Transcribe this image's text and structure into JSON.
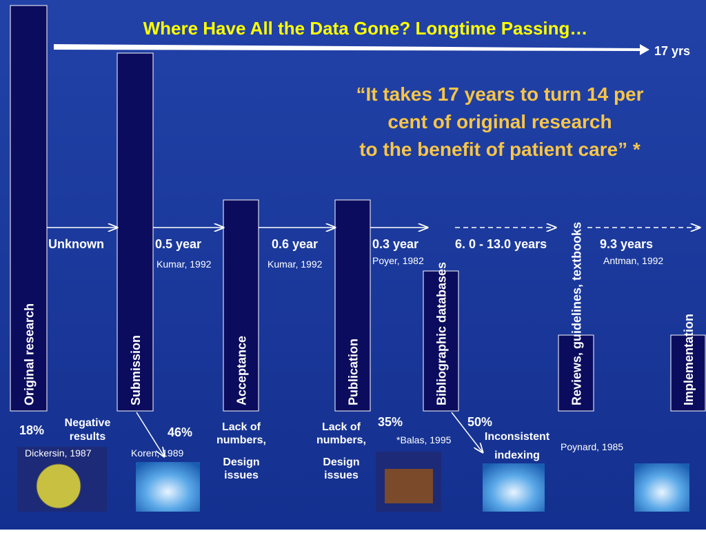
{
  "title": "Where Have All the Data Gone? Longtime Passing…",
  "timeline_label": "17 yrs",
  "quote": [
    "“It takes 17 years to turn 14 per",
    "cent of original research",
    "to the benefit of patient care” *"
  ],
  "stages": [
    "Original research",
    "Submission",
    "Acceptance",
    "Publication",
    "Bibliographic databases",
    "Reviews, guidelines, textbooks",
    "Implementation"
  ],
  "intervals": [
    {
      "duration": "Unknown"
    },
    {
      "duration": "0.5 year",
      "source": "Kumar, 1992"
    },
    {
      "duration": "0.6 year",
      "source": "Kumar, 1992"
    },
    {
      "duration": "0.3 year",
      "source": "Poyer, 1982"
    },
    {
      "duration": "6. 0 - 13.0 years"
    },
    {
      "duration": "9.3 years",
      "source": "Antman, 1992"
    }
  ],
  "losses": [
    {
      "percent": "18%",
      "reason": [
        "Negative",
        "results"
      ],
      "source": "Dickersin, 1987"
    },
    {
      "percent": "46%",
      "source": "Koren, 1989"
    },
    {
      "reason": [
        "Lack of",
        "numbers,",
        "Design",
        "issues"
      ]
    },
    {
      "reason": [
        "Lack of",
        "numbers,",
        "Design",
        "issues"
      ]
    },
    {
      "percent": "35%",
      "source": "*Balas, 1995"
    },
    {
      "percent": "50%",
      "reason": [
        "Inconsistent",
        "indexing"
      ]
    },
    {
      "source": "Poynard, 1985"
    }
  ]
}
